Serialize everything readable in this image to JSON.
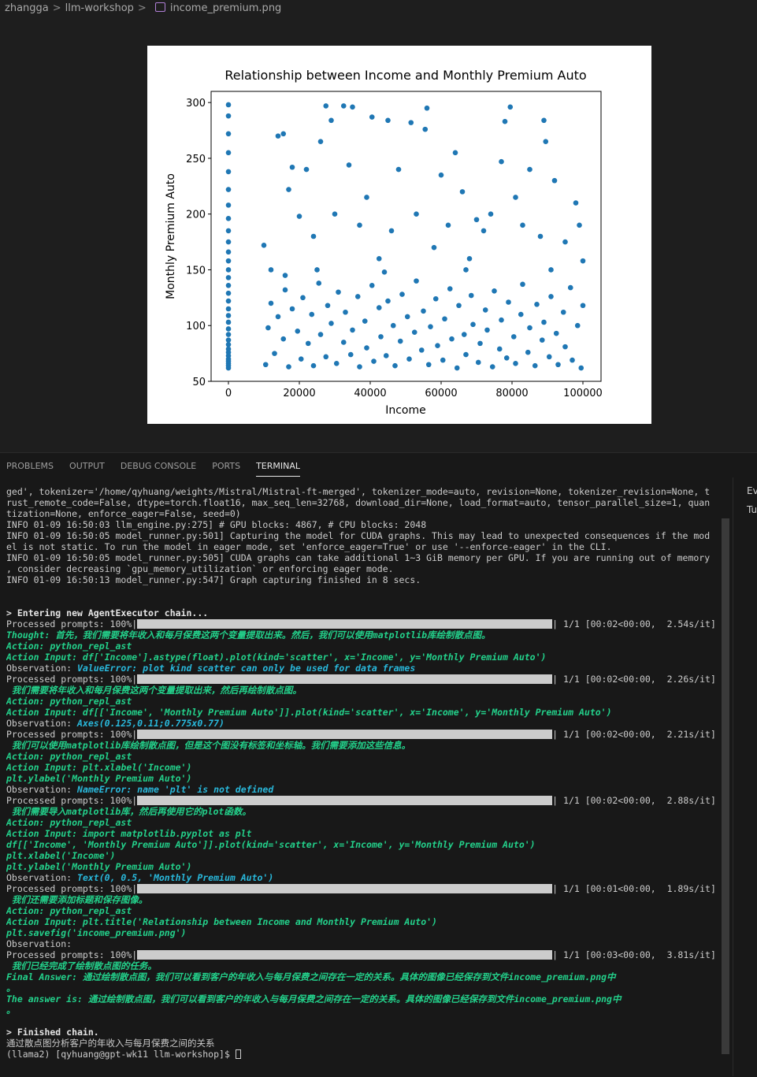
{
  "breadcrumb": [
    "zhangga",
    "llm-workshop",
    "income_premium.png"
  ],
  "image_viewer": {
    "chart": {
      "type": "scatter",
      "title": "Relationship between Income and Monthly Premium Auto",
      "x_label": "Income",
      "y_label": "Monthly Premium Auto",
      "color": "#1f77b4",
      "xlim": [
        -4889,
        105111
      ],
      "ylim": [
        50,
        310
      ],
      "xticks": [
        0,
        20000,
        40000,
        60000,
        80000,
        100000
      ],
      "yticks": [
        50,
        100,
        150,
        200,
        250,
        300
      ],
      "x": [
        0,
        0,
        0,
        0,
        0,
        0,
        0,
        0,
        0,
        0,
        0,
        0,
        0,
        0,
        0,
        0,
        0,
        0,
        0,
        0,
        0,
        0,
        0,
        0,
        0,
        0,
        0,
        0,
        0,
        0,
        0,
        0,
        10500,
        11200,
        12000,
        13000,
        14000,
        15500,
        16000,
        17000,
        18000,
        19500,
        20500,
        21000,
        22500,
        23500,
        24000,
        25500,
        26000,
        27500,
        28000,
        29000,
        30500,
        31000,
        32500,
        33000,
        34500,
        35000,
        36500,
        37000,
        38500,
        39000,
        40500,
        41000,
        42500,
        43000,
        44500,
        45000,
        46500,
        47000,
        48500,
        49000,
        50500,
        51000,
        52500,
        53000,
        54500,
        55000,
        56500,
        57000,
        58500,
        59000,
        60500,
        61000,
        62500,
        63000,
        64500,
        65000,
        66500,
        67000,
        68500,
        69000,
        70500,
        71000,
        72500,
        73000,
        74500,
        75000,
        76500,
        77000,
        78500,
        79000,
        80500,
        81000,
        82500,
        83000,
        84500,
        85000,
        86500,
        87000,
        88500,
        89000,
        90500,
        91000,
        92500,
        93000,
        94500,
        95000,
        96500,
        97000,
        98500,
        99500,
        100000,
        10000,
        14000,
        15500,
        17000,
        18000,
        20000,
        22000,
        24000,
        26000,
        27500,
        29000,
        30000,
        32500,
        34000,
        35000,
        37000,
        39000,
        40500,
        42500,
        45000,
        46000,
        48000,
        51500,
        53000,
        55500,
        56000,
        58000,
        60000,
        62000,
        64000,
        66000,
        68000,
        70000,
        72000,
        74000,
        77000,
        78000,
        79500,
        81000,
        83000,
        85000,
        88000,
        89000,
        89500,
        92000,
        95000,
        98000,
        99000,
        100000,
        12000,
        16000,
        25000,
        44000,
        67000,
        91000
      ],
      "values": [
        62,
        64,
        66,
        68,
        70,
        73,
        76,
        79,
        83,
        87,
        92,
        97,
        103,
        109,
        115,
        122,
        129,
        136,
        143,
        150,
        158,
        166,
        175,
        185,
        196,
        208,
        222,
        238,
        255,
        272,
        288,
        298,
        65,
        98,
        120,
        75,
        108,
        88,
        132,
        63,
        115,
        95,
        70,
        125,
        84,
        110,
        64,
        138,
        92,
        72,
        118,
        102,
        66,
        130,
        85,
        112,
        74,
        96,
        126,
        63,
        104,
        80,
        136,
        68,
        116,
        90,
        73,
        122,
        100,
        64,
        86,
        128,
        108,
        70,
        94,
        140,
        78,
        113,
        65,
        99,
        124,
        82,
        69,
        106,
        133,
        88,
        62,
        118,
        92,
        74,
        127,
        101,
        67,
        84,
        114,
        96,
        63,
        131,
        79,
        105,
        71,
        121,
        90,
        66,
        110,
        137,
        76,
        98,
        64,
        119,
        87,
        103,
        72,
        126,
        93,
        65,
        112,
        81,
        134,
        69,
        100,
        62,
        118,
        172,
        270,
        272,
        222,
        242,
        198,
        240,
        180,
        265,
        297,
        284,
        200,
        297,
        244,
        296,
        190,
        215,
        287,
        160,
        284,
        185,
        240,
        282,
        200,
        276,
        295,
        170,
        235,
        190,
        255,
        220,
        160,
        195,
        185,
        200,
        247,
        283,
        296,
        215,
        190,
        240,
        180,
        284,
        265,
        230,
        175,
        210,
        190,
        158,
        150,
        145,
        150,
        148,
        150,
        150
      ]
    }
  },
  "panel_tabs": [
    "PROBLEMS",
    "OUTPUT",
    "DEBUG CONSOLE",
    "PORTS",
    "TERMINAL"
  ],
  "side_panel": [
    "Ev",
    "Tu"
  ],
  "terminal": {
    "lines": [
      [
        "ged', tokenizer='/home/qyhuang/weights/Mistral/Mistral-ft-merged', tokenizer_mode=auto, revision=None, tokenizer_revision=None, t"
      ],
      [
        "rust_remote_code=False, dtype=torch.float16, max_seq_len=32768, download_dir=None, load_format=auto, tensor_parallel_size=1, quan"
      ],
      [
        "tization=None, enforce_eager=False, seed=0)"
      ],
      [
        "INFO 01-09 16:50:03 llm_engine.py:275] # GPU blocks: 4867, # CPU blocks: 2048"
      ],
      [
        "INFO 01-09 16:50:05 model_runner.py:501] Capturing the model for CUDA graphs. This may lead to unexpected consequences if the mod"
      ],
      [
        "el is not static. To run the model in eager mode, set 'enforce_eager=True' or use '--enforce-eager' in the CLI."
      ],
      [
        "INFO 01-09 16:50:05 model_runner.py:505] CUDA graphs can take additional 1~3 GiB memory per GPU. If you are running out of memory"
      ],
      [
        ", consider decreasing `gpu_memory_utilization` or enforcing eager mode."
      ],
      [
        "INFO 01-09 16:50:13 model_runner.py:547] Graph capturing finished in 8 secs."
      ],
      [],
      [],
      [
        {
          "text": "> Entering new AgentExecutor chain...",
          "color": "#e5e5e5",
          "bold": true
        }
      ],
      {
        "prefix": "Processed prompts: 100%|",
        "suffix": "| 1/1 [00:02<00:00,  2.54s/it]"
      },
      [
        {
          "text": "Thought: 首先，我们需要将年收入和每月保费这两个变量提取出来。然后，我们可以使用matplotlib库绘制散点图。",
          "color": "#23d18b"
        }
      ],
      [
        {
          "text": "Action: python_repl_ast",
          "color": "#23d18b"
        }
      ],
      [
        {
          "text": "Action Input: df['Income'].astype(float).plot(kind='scatter', x='Income', y='Monthly Premium Auto')",
          "color": "#23d18b"
        }
      ],
      [
        "Observation: ",
        {
          "text": "ValueError: plot kind scatter can only be used for data frames",
          "color": "#29b8db"
        }
      ],
      {
        "prefix": "Processed prompts: 100%|",
        "suffix": "| 1/1 [00:02<00:00,  2.26s/it]"
      },
      [
        {
          "text": " 我们需要将年收入和每月保费这两个变量提取出来，然后再绘制散点图。",
          "color": "#23d18b"
        }
      ],
      [
        {
          "text": "Action: python_repl_ast",
          "color": "#23d18b"
        }
      ],
      [
        {
          "text": "Action Input: df[['Income', 'Monthly Premium Auto']].plot(kind='scatter', x='Income', y='Monthly Premium Auto')",
          "color": "#23d18b"
        }
      ],
      [
        "Observation: ",
        {
          "text": "Axes(0.125,0.11;0.775x0.77)",
          "color": "#29b8db"
        }
      ],
      {
        "prefix": "Processed prompts: 100%|",
        "suffix": "| 1/1 [00:02<00:00,  2.21s/it]"
      },
      [
        {
          "text": " 我们可以使用matplotlib库绘制散点图，但是这个图没有标签和坐标轴。我们需要添加这些信息。",
          "color": "#23d18b"
        }
      ],
      [
        {
          "text": "Action: python_repl_ast",
          "color": "#23d18b"
        }
      ],
      [
        {
          "text": "Action Input: plt.xlabel('Income')",
          "color": "#23d18b"
        }
      ],
      [
        {
          "text": "plt.ylabel('Monthly Premium Auto')",
          "color": "#23d18b"
        }
      ],
      [
        "Observation: ",
        {
          "text": "NameError: name 'plt' is not defined",
          "color": "#29b8db"
        }
      ],
      {
        "prefix": "Processed prompts: 100%|",
        "suffix": "| 1/1 [00:02<00:00,  2.88s/it]"
      },
      [
        {
          "text": " 我们需要导入matplotlib库，然后再使用它的plot函数。",
          "color": "#23d18b"
        }
      ],
      [
        {
          "text": "Action: python_repl_ast",
          "color": "#23d18b"
        }
      ],
      [
        {
          "text": "Action Input: import matplotlib.pyplot as plt",
          "color": "#23d18b"
        }
      ],
      [
        {
          "text": "df[['Income', 'Monthly Premium Auto']].plot(kind='scatter', x='Income', y='Monthly Premium Auto')",
          "color": "#23d18b"
        }
      ],
      [
        {
          "text": "plt.xlabel('Income')",
          "color": "#23d18b"
        }
      ],
      [
        {
          "text": "plt.ylabel('Monthly Premium Auto')",
          "color": "#23d18b"
        }
      ],
      [
        "Observation: ",
        {
          "text": "Text(0, 0.5, 'Monthly Premium Auto')",
          "color": "#29b8db"
        }
      ],
      {
        "prefix": "Processed prompts: 100%|",
        "suffix": "| 1/1 [00:01<00:00,  1.89s/it]"
      },
      [
        {
          "text": " 我们还需要添加标题和保存图像。",
          "color": "#23d18b"
        }
      ],
      [
        {
          "text": "Action: python_repl_ast",
          "color": "#23d18b"
        }
      ],
      [
        {
          "text": "Action Input: plt.title('Relationship between Income and Monthly Premium Auto')",
          "color": "#23d18b"
        }
      ],
      [
        {
          "text": "plt.savefig('income_premium.png')",
          "color": "#23d18b"
        }
      ],
      [
        "Observation:"
      ],
      {
        "prefix": "Processed prompts: 100%|",
        "suffix": "| 1/1 [00:03<00:00,  3.81s/it]"
      },
      [
        {
          "text": " 我们已经完成了绘制散点图的任务。",
          "color": "#23d18b"
        }
      ],
      [
        {
          "text": "Final Answer: 通过绘制散点图，我们可以看到客户的年收入与每月保费之间存在一定的关系。具体的图像已经保存到文件income_premium.png中",
          "color": "#23d18b"
        }
      ],
      [
        {
          "text": "。",
          "color": "#23d18b"
        }
      ],
      [
        {
          "text": "The answer is: 通过绘制散点图，我们可以看到客户的年收入与每月保费之间存在一定的关系。具体的图像已经保存到文件income_premium.png中",
          "color": "#23d18b"
        }
      ],
      [
        {
          "text": "。",
          "color": "#23d18b"
        }
      ],
      [],
      [
        {
          "text": "> Finished chain.",
          "color": "#e5e5e5",
          "bold": true
        }
      ],
      [
        "通过散点图分析客户的年收入与每月保费之间的关系"
      ],
      [
        "(llama2) [qyhuang@gpt-wk11 llm-workshop]$ "
      ]
    ]
  }
}
